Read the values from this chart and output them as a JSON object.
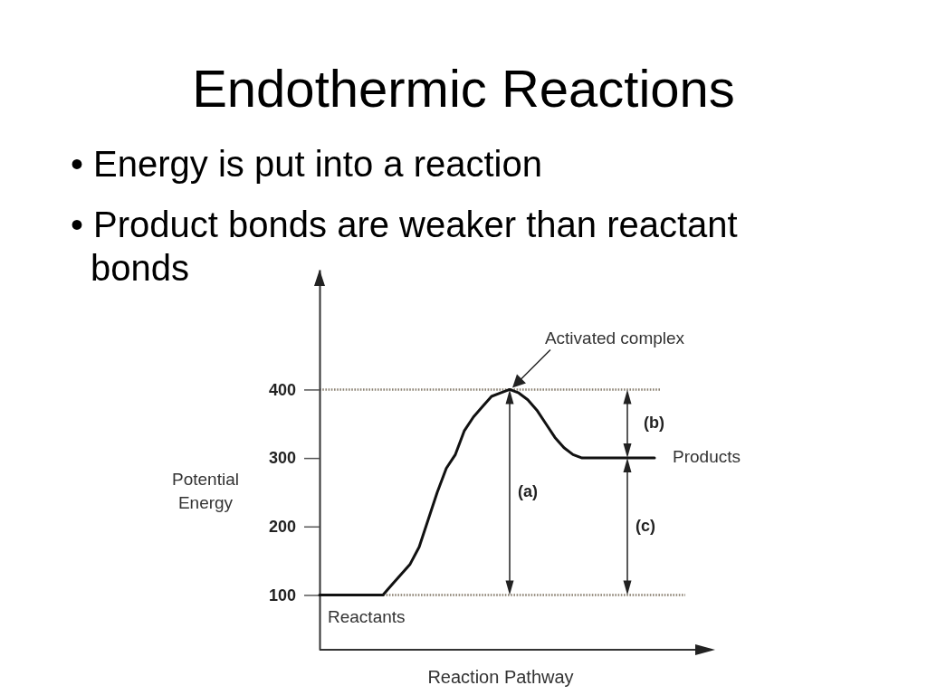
{
  "chart_data": {
    "type": "line",
    "title": "Endothermic Reactions",
    "xlabel": "Reaction Pathway",
    "ylabel": "Potential Energy",
    "categories": [
      null,
      null,
      null,
      null,
      null,
      null,
      null,
      null,
      null,
      null,
      null,
      null,
      null,
      null,
      null,
      null,
      null,
      null,
      null,
      null,
      null,
      null,
      null,
      null,
      null,
      null,
      null,
      null,
      null,
      null,
      null,
      null,
      null,
      null,
      null,
      null,
      null,
      null
    ],
    "series": [
      {
        "color": "#111111",
        "values": [
          100,
          100,
          100,
          100,
          100,
          100,
          100,
          100,
          115,
          130,
          145,
          170,
          210,
          250,
          285,
          305,
          340,
          360,
          375,
          390,
          395,
          400,
          395,
          385,
          370,
          350,
          330,
          315,
          305,
          300,
          300,
          300,
          300,
          300,
          300,
          300,
          300,
          300
        ]
      }
    ],
    "ylim": [
      20,
      575
    ],
    "yticks": [
      100,
      200,
      300,
      400
    ],
    "tick_labels": "y",
    "ref_lines": [
      {
        "axis": "y",
        "value": 400,
        "color": "#8c8273",
        "line_style": "dotted"
      },
      {
        "axis": "y",
        "value": 100,
        "color": "#8c8273",
        "line_style": "dotted"
      }
    ],
    "annotations": [
      "• Energy is put into a reaction",
      "• Product bonds are weaker than reactant bonds",
      {
        "text": "Activated complex",
        "y": 400
      },
      {
        "text": "Reactants",
        "y": 100
      },
      "Products",
      "(a)",
      "(b)",
      "(c)"
    ]
  }
}
